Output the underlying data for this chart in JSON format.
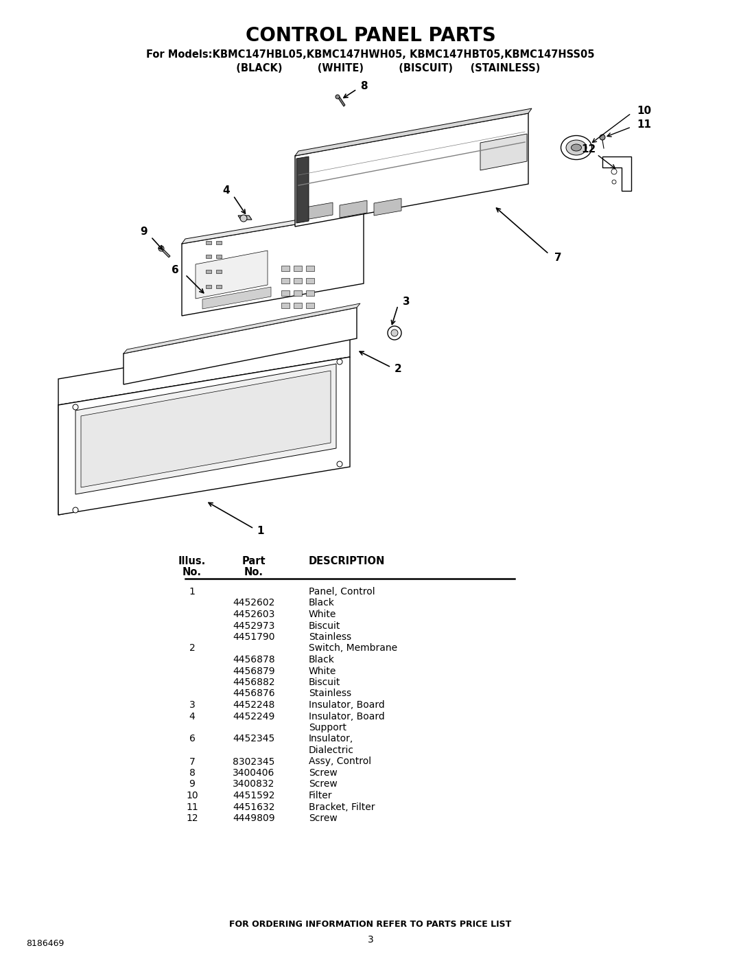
{
  "title": "CONTROL PANEL PARTS",
  "subtitle_line1": "For Models:KBMC147HBL05,KBMC147HWH05, KBMC147HBT05,KBMC147HSS05",
  "subtitle_line2": "          (BLACK)          (WHITE)          (BISCUIT)     (STAINLESS)",
  "bg_color": "#ffffff",
  "rows": [
    {
      "illus": "1",
      "part": "",
      "desc": "Panel, Control"
    },
    {
      "illus": "",
      "part": "4452602",
      "desc": "Black"
    },
    {
      "illus": "",
      "part": "4452603",
      "desc": "White"
    },
    {
      "illus": "",
      "part": "4452973",
      "desc": "Biscuit"
    },
    {
      "illus": "",
      "part": "4451790",
      "desc": "Stainless"
    },
    {
      "illus": "2",
      "part": "",
      "desc": "Switch, Membrane"
    },
    {
      "illus": "",
      "part": "4456878",
      "desc": "Black"
    },
    {
      "illus": "",
      "part": "4456879",
      "desc": "White"
    },
    {
      "illus": "",
      "part": "4456882",
      "desc": "Biscuit"
    },
    {
      "illus": "",
      "part": "4456876",
      "desc": "Stainless"
    },
    {
      "illus": "3",
      "part": "4452248",
      "desc": "Insulator, Board"
    },
    {
      "illus": "4",
      "part": "4452249",
      "desc": "Insulator, Board"
    },
    {
      "illus": "",
      "part": "",
      "desc": "Support"
    },
    {
      "illus": "6",
      "part": "4452345",
      "desc": "Insulator,"
    },
    {
      "illus": "",
      "part": "",
      "desc": "Dialectric"
    },
    {
      "illus": "7",
      "part": "8302345",
      "desc": "Assy, Control"
    },
    {
      "illus": "8",
      "part": "3400406",
      "desc": "Screw"
    },
    {
      "illus": "9",
      "part": "3400832",
      "desc": "Screw"
    },
    {
      "illus": "10",
      "part": "4451592",
      "desc": "Filter"
    },
    {
      "illus": "11",
      "part": "4451632",
      "desc": "Bracket, Filter"
    },
    {
      "illus": "12",
      "part": "4449809",
      "desc": "Screw"
    }
  ],
  "footer": "FOR ORDERING INFORMATION REFER TO PARTS PRICE LIST",
  "page_num": "3",
  "doc_num": "8186469"
}
